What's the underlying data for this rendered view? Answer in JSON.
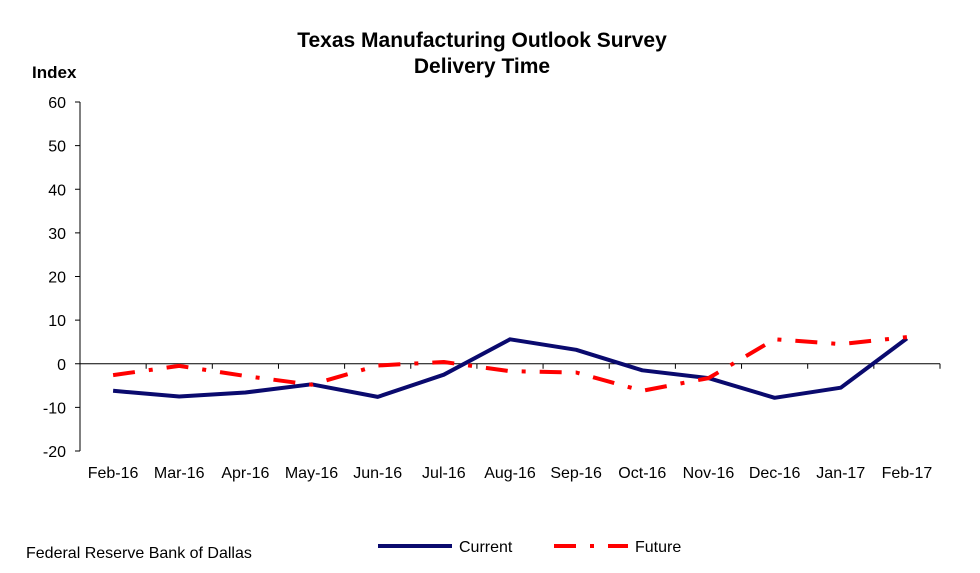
{
  "chart_data": {
    "type": "line",
    "title": "Texas Manufacturing Outlook Survey",
    "subtitle": "Delivery Time",
    "ylabel": "Index",
    "xlabel": "",
    "ylim": [
      -20,
      60
    ],
    "yticks": [
      -20,
      -10,
      0,
      10,
      20,
      30,
      40,
      50,
      60
    ],
    "categories": [
      "Feb-16",
      "Mar-16",
      "Apr-16",
      "May-16",
      "Jun-16",
      "Jul-16",
      "Aug-16",
      "Sep-16",
      "Oct-16",
      "Nov-16",
      "Dec-16",
      "Jan-17",
      "Feb-17"
    ],
    "series": [
      {
        "name": "Current",
        "color": "#0a0a6e",
        "style": "solid",
        "values": [
          -6.2,
          -7.5,
          -6.6,
          -4.7,
          -7.6,
          -2.5,
          5.6,
          3.2,
          -1.5,
          -3.3,
          -7.8,
          -5.5,
          5.8
        ]
      },
      {
        "name": "Future",
        "color": "#ff0000",
        "style": "dash-dot",
        "values": [
          -2.6,
          -0.5,
          -2.8,
          -4.8,
          -0.4,
          0.4,
          -1.7,
          -2.0,
          -6.2,
          -3.3,
          5.6,
          4.5,
          6.1
        ]
      }
    ],
    "legend": "bottom",
    "grid": false
  },
  "footer": {
    "source": "Federal Reserve Bank of Dallas"
  }
}
